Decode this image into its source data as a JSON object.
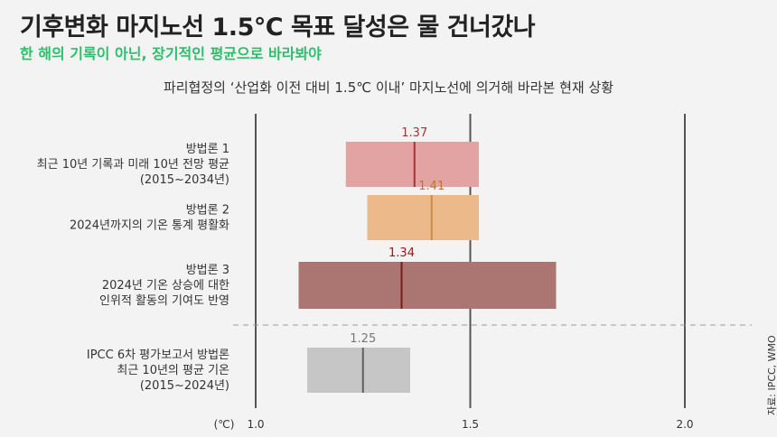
{
  "header": {
    "title": "기후변화 마지노선 1.5℃ 목표 달성은 물 건너갔나",
    "subtitle": "한 해의 기록이 아닌, 장기적인 평균으로 바라봐야",
    "caption": "파리협정의 ‘산업화 이전 대비 1.5℃ 이내’ 마지노선에 의거해 바라본 현재 상황",
    "source": "자료: IPCC, WMO"
  },
  "colors": {
    "accent": "#2bbf6a",
    "title": "#222222",
    "dashed_separator": "#999999"
  },
  "chart_data": {
    "type": "range-bar",
    "unit_label": "(℃)",
    "xlim": [
      1.0,
      2.15
    ],
    "ticks": [
      {
        "value": 1.0,
        "label": "1.0"
      },
      {
        "value": 1.5,
        "label": "1.5"
      },
      {
        "value": 2.0,
        "label": "2.0"
      }
    ],
    "rows": [
      {
        "label_lines": [
          "방법론 1",
          "최근 10년 기록과 미래 10년 전망 평균",
          "(2015~2034년)"
        ],
        "low": 1.21,
        "high": 1.52,
        "central": 1.37,
        "central_label": "1.37",
        "fill": "#e3a3a3",
        "line": "#a83232",
        "label_color": "#a83232"
      },
      {
        "label_lines": [
          "방법론 2",
          "2024년까지의 기온 통계 평활화"
        ],
        "low": 1.26,
        "high": 1.52,
        "central": 1.41,
        "central_label": "1.41",
        "fill": "#ebb98a",
        "line": "#c98c4a",
        "label_color": "#c0722a"
      },
      {
        "label_lines": [
          "방법론 3",
          "2024년 기온 상승에 대한",
          "인위적 활동의 기여도 반영"
        ],
        "low": 1.1,
        "high": 1.7,
        "central": 1.34,
        "central_label": "1.34",
        "fill": "#ab7571",
        "line": "#7a1d16",
        "label_color": "#8a1f17"
      },
      {
        "label_lines": [
          "IPCC 6차 평가보고서 방법론",
          "최근 10년의 평균 기온",
          "(2015~2024년)"
        ],
        "low": 1.12,
        "high": 1.36,
        "central": 1.25,
        "central_label": "1.25",
        "fill": "#c6c6c6",
        "line": "#5f5f5f",
        "label_color": "#777777"
      }
    ]
  }
}
